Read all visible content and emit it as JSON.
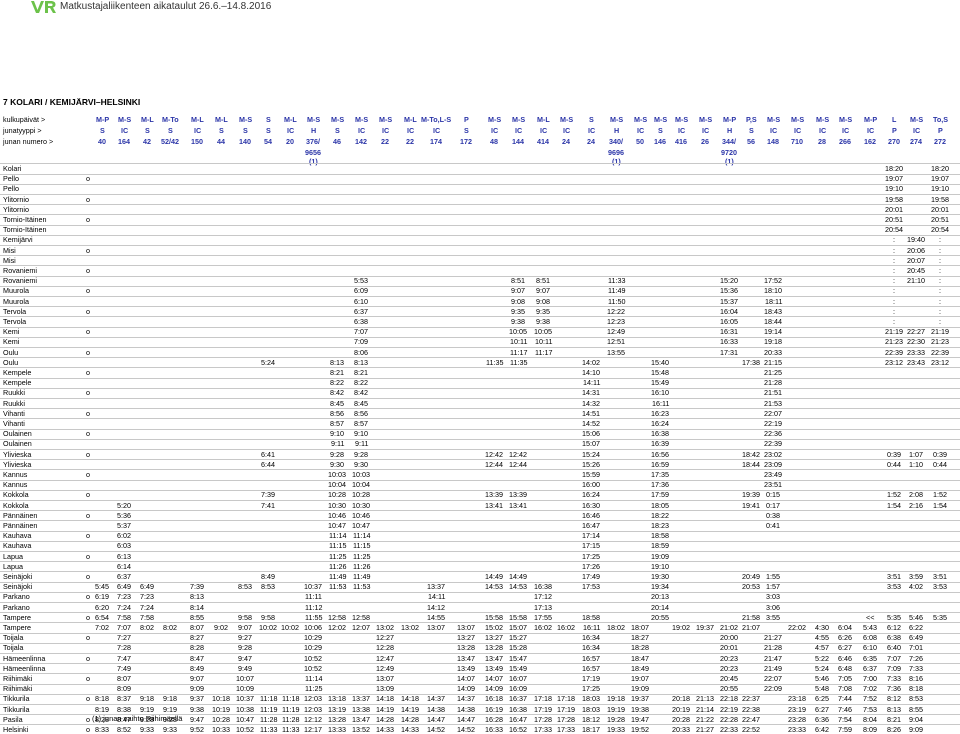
{
  "header": {
    "logo_text": "VR",
    "title": "Matkustajaliikenteen aikataulut 26.6.–14.8.2016"
  },
  "section_title": "7 KOLARI / KEMIJÄRVI–HELSINKI",
  "header_rows": [
    {
      "label": "kulkupäivät >",
      "cells": [
        "M-P",
        "M-S",
        "M-L",
        "M-To",
        "M-L",
        "M-L",
        "M-S",
        "S",
        "M-L",
        "M-S",
        "M-S",
        "M-S",
        "M-S",
        "M-L",
        "M-To,L-S",
        "P",
        "M-S",
        "M-S",
        "M-L",
        "M-S",
        "S",
        "M-S",
        "M-S",
        "M-S",
        "M-S",
        "M-S",
        "M-P",
        "P,S",
        "M-S",
        "M-S",
        "M-S",
        "M-S",
        "M-P",
        "L",
        "M-S",
        "To,S"
      ]
    },
    {
      "label": "junatyyppi >",
      "cells": [
        "S",
        "IC",
        "S",
        "S",
        "IC",
        "S",
        "S",
        "S",
        "IC",
        "H",
        "S",
        "IC",
        "IC",
        "IC",
        "IC",
        "S",
        "IC",
        "IC",
        "IC",
        "IC",
        "IC",
        "H",
        "IC",
        "S",
        "IC",
        "IC",
        "H",
        "S",
        "IC",
        "IC",
        "IC",
        "IC",
        "IC",
        "P",
        "IC",
        "P"
      ]
    },
    {
      "label": "junan numero >",
      "cells": [
        "40",
        "164",
        "42",
        "52/42",
        "150",
        "44",
        "140",
        "54",
        "20",
        "376/",
        "46",
        "142",
        "22",
        "22",
        "174",
        "172",
        "48",
        "144",
        "414",
        "24",
        "24",
        "340/",
        "50",
        "146",
        "416",
        "26",
        "344/",
        "56",
        "148",
        "710",
        "28",
        "266",
        "162",
        "270",
        "274",
        "272"
      ]
    },
    {
      "label": "",
      "cells": [
        "",
        "",
        "",
        "",
        "",
        "",
        "",
        "",
        "",
        "9656",
        "",
        "",
        "",
        "",
        "",
        "",
        "",
        "",
        "",
        "",
        "",
        "9696",
        "",
        "",
        "",
        "",
        "9720",
        "",
        "",
        "",
        "",
        "",
        "",
        "",
        "",
        ""
      ]
    },
    {
      "label": "",
      "cells": [
        "",
        "",
        "",
        "",
        "",
        "",
        "",
        "",
        "",
        "(1)",
        "",
        "",
        "",
        "",
        "",
        "",
        "",
        "",
        "",
        "",
        "",
        "(1)",
        "",
        "",
        "",
        "",
        "(1)",
        "",
        "",
        "",
        "",
        "",
        "",
        "",
        "",
        ""
      ]
    }
  ],
  "rows": [
    {
      "s": "Kolari",
      "o": "",
      "c": {
        "33": "18:20",
        "35": "18:20"
      }
    },
    {
      "s": "Pello",
      "o": "o",
      "c": {
        "33": "19:07",
        "35": "19:07"
      }
    },
    {
      "s": "Pello",
      "o": "",
      "c": {
        "33": "19:10",
        "35": "19:10"
      }
    },
    {
      "s": "Ylitornio",
      "o": "o",
      "c": {
        "33": "19:58",
        "35": "19:58"
      }
    },
    {
      "s": "Ylitornio",
      "o": "",
      "c": {
        "33": "20:01",
        "35": "20:01"
      }
    },
    {
      "s": "Tornio-Itäinen",
      "o": "o",
      "c": {
        "33": "20:51",
        "35": "20:51"
      }
    },
    {
      "s": "Tornio-Itäinen",
      "o": "",
      "c": {
        "33": "20:54",
        "35": "20:54"
      }
    },
    {
      "s": "Kemijärvi",
      "o": "",
      "c": {
        "33": ":",
        "34": "19:40",
        "35": ":"
      }
    },
    {
      "s": "Misi",
      "o": "o",
      "c": {
        "33": ":",
        "34": "20:06",
        "35": ":"
      }
    },
    {
      "s": "Misi",
      "o": "",
      "c": {
        "33": ":",
        "34": "20:07",
        "35": ":"
      }
    },
    {
      "s": "Rovaniemi",
      "o": "o",
      "c": {
        "33": ":",
        "34": "20:45",
        "35": ":"
      }
    },
    {
      "s": "Rovaniemi",
      "o": "",
      "c": {
        "11": "5:53",
        "17": "8:51",
        "18": "8:51",
        "21": "11:33",
        "26": "15:20",
        "28": "17:52",
        "33": ":",
        "34": "21:10",
        "35": ":"
      }
    },
    {
      "s": "Muurola",
      "o": "o",
      "c": {
        "11": "6:09",
        "17": "9:07",
        "18": "9:07",
        "21": "11:49",
        "26": "15:36",
        "28": "18:10",
        "33": ":",
        "35": ":"
      }
    },
    {
      "s": "Muurola",
      "o": "",
      "c": {
        "11": "6:10",
        "17": "9:08",
        "18": "9:08",
        "21": "11:50",
        "26": "15:37",
        "28": "18:11",
        "33": ":",
        "35": ":"
      }
    },
    {
      "s": "Tervola",
      "o": "o",
      "c": {
        "11": "6:37",
        "17": "9:35",
        "18": "9:35",
        "21": "12:22",
        "26": "16:04",
        "28": "18:43",
        "33": ":",
        "35": ":"
      }
    },
    {
      "s": "Tervola",
      "o": "",
      "c": {
        "11": "6:38",
        "17": "9:38",
        "18": "9:38",
        "21": "12:23",
        "26": "16:05",
        "28": "18:44",
        "33": ":",
        "35": ":"
      }
    },
    {
      "s": "Kemi",
      "o": "o",
      "c": {
        "11": "7:07",
        "17": "10:05",
        "18": "10:05",
        "21": "12:49",
        "26": "16:31",
        "28": "19:14",
        "33": "21:19",
        "34": "22:27",
        "35": "21:19"
      }
    },
    {
      "s": "Kemi",
      "o": "",
      "c": {
        "11": "7:09",
        "17": "10:11",
        "18": "10:11",
        "21": "12:51",
        "26": "16:33",
        "28": "19:18",
        "33": "21:23",
        "34": "22:30",
        "35": "21:23"
      }
    },
    {
      "s": "Oulu",
      "o": "o",
      "c": {
        "11": "8:06",
        "17": "11:17",
        "18": "11:17",
        "21": "13:55",
        "26": "17:31",
        "28": "20:33",
        "33": "22:39",
        "34": "23:33",
        "35": "22:39"
      }
    },
    {
      "s": "Oulu",
      "o": "",
      "c": {
        "7": "5:24",
        "10": "8:13",
        "11": "8:13",
        "16": "11:35",
        "17": "11:35",
        "20": "14:02",
        "23": "15:40",
        "27": "17:38",
        "28": "21:15",
        "33": "23:12",
        "34": "23:43",
        "35": "23:12"
      }
    },
    {
      "s": "Kempele",
      "o": "o",
      "c": {
        "10": "8:21",
        "11": "8:21",
        "20": "14:10",
        "23": "15:48",
        "28": "21:25"
      }
    },
    {
      "s": "Kempele",
      "o": "",
      "c": {
        "10": "8:22",
        "11": "8:22",
        "20": "14:11",
        "23": "15:49",
        "28": "21:28"
      }
    },
    {
      "s": "Ruukki",
      "o": "o",
      "c": {
        "10": "8:42",
        "11": "8:42",
        "20": "14:31",
        "23": "16:10",
        "28": "21:51"
      }
    },
    {
      "s": "Ruukki",
      "o": "",
      "c": {
        "10": "8:45",
        "11": "8:45",
        "20": "14:32",
        "23": "16:11",
        "28": "21:53"
      }
    },
    {
      "s": "Vihanti",
      "o": "o",
      "c": {
        "10": "8:56",
        "11": "8:56",
        "20": "14:51",
        "23": "16:23",
        "28": "22:07"
      }
    },
    {
      "s": "Vihanti",
      "o": "",
      "c": {
        "10": "8:57",
        "11": "8:57",
        "20": "14:52",
        "23": "16:24",
        "28": "22:19"
      }
    },
    {
      "s": "Oulainen",
      "o": "o",
      "c": {
        "10": "9:10",
        "11": "9:10",
        "20": "15:06",
        "23": "16:38",
        "28": "22:36"
      }
    },
    {
      "s": "Oulainen",
      "o": "",
      "c": {
        "10": "9:11",
        "11": "9:11",
        "20": "15:07",
        "23": "16:39",
        "28": "22:39"
      }
    },
    {
      "s": "Ylivieska",
      "o": "o",
      "c": {
        "7": "6:41",
        "10": "9:28",
        "11": "9:28",
        "16": "12:42",
        "17": "12:42",
        "20": "15:24",
        "23": "16:56",
        "27": "18:42",
        "28": "23:02",
        "33": "0:39",
        "34": "1:07",
        "35": "0:39"
      }
    },
    {
      "s": "Ylivieska",
      "o": "",
      "c": {
        "7": "6:44",
        "10": "9:30",
        "11": "9:30",
        "16": "12:44",
        "17": "12:44",
        "20": "15:26",
        "23": "16:59",
        "27": "18:44",
        "28": "23:09",
        "33": "0:44",
        "34": "1:10",
        "35": "0:44"
      }
    },
    {
      "s": "Kannus",
      "o": "o",
      "c": {
        "10": "10:03",
        "11": "10:03",
        "20": "15:59",
        "23": "17:35",
        "28": "23:49"
      }
    },
    {
      "s": "Kannus",
      "o": "",
      "c": {
        "10": "10:04",
        "11": "10:04",
        "20": "16:00",
        "23": "17:36",
        "28": "23:51"
      }
    },
    {
      "s": "Kokkola",
      "o": "o",
      "c": {
        "7": "7:39",
        "10": "10:28",
        "11": "10:28",
        "16": "13:39",
        "17": "13:39",
        "20": "16:24",
        "23": "17:59",
        "27": "19:39",
        "28": "0:15",
        "33": "1:52",
        "34": "2:08",
        "35": "1:52"
      }
    },
    {
      "s": "Kokkola",
      "o": "",
      "c": {
        "1": "5:20",
        "7": "7:41",
        "10": "10:30",
        "11": "10:30",
        "16": "13:41",
        "17": "13:41",
        "20": "16:30",
        "23": "18:05",
        "27": "19:41",
        "28": "0:17",
        "33": "1:54",
        "34": "2:16",
        "35": "1:54"
      }
    },
    {
      "s": "Pännäinen",
      "o": "o",
      "c": {
        "1": "5:36",
        "10": "10:46",
        "11": "10:46",
        "20": "16:46",
        "23": "18:22",
        "28": "0:38"
      }
    },
    {
      "s": "Pännäinen",
      "o": "",
      "c": {
        "1": "5:37",
        "10": "10:47",
        "11": "10:47",
        "20": "16:47",
        "23": "18:23",
        "28": "0:41"
      }
    },
    {
      "s": "Kauhava",
      "o": "o",
      "c": {
        "1": "6:02",
        "10": "11:14",
        "11": "11:14",
        "20": "17:14",
        "23": "18:58"
      }
    },
    {
      "s": "Kauhava",
      "o": "",
      "c": {
        "1": "6:03",
        "10": "11:15",
        "11": "11:15",
        "20": "17:15",
        "23": "18:59"
      }
    },
    {
      "s": "Lapua",
      "o": "o",
      "c": {
        "1": "6:13",
        "10": "11:25",
        "11": "11:25",
        "20": "17:25",
        "23": "19:09"
      }
    },
    {
      "s": "Lapua",
      "o": "",
      "c": {
        "1": "6:14",
        "10": "11:26",
        "11": "11:26",
        "20": "17:26",
        "23": "19:10"
      }
    },
    {
      "s": "Seinäjoki",
      "o": "o",
      "c": {
        "1": "6:37",
        "7": "8:49",
        "10": "11:49",
        "11": "11:49",
        "16": "14:49",
        "17": "14:49",
        "20": "17:49",
        "23": "19:30",
        "27": "20:49",
        "28": "1:55",
        "33": "3:51",
        "34": "3:59",
        "35": "3:51"
      }
    },
    {
      "s": "Seinäjoki",
      "o": "",
      "c": {
        "0": "5:45",
        "1": "6:49",
        "2": "6:49",
        "4": "7:39",
        "6": "8:53",
        "7": "8:53",
        "9": "10:37",
        "10": "11:53",
        "11": "11:53",
        "14": "13:37",
        "16": "14:53",
        "17": "14:53",
        "18": "16:38",
        "20": "17:53",
        "23": "19:34",
        "27": "20:53",
        "28": "1:57",
        "33": "3:53",
        "34": "4:02",
        "35": "3:53"
      }
    },
    {
      "s": "Parkano",
      "o": "o",
      "c": {
        "0": "6:19",
        "1": "7:23",
        "2": "7:23",
        "4": "8:13",
        "9": "11:11",
        "14": "14:11",
        "18": "17:12",
        "23": "20:13",
        "28": "3:03"
      }
    },
    {
      "s": "Parkano",
      "o": "",
      "c": {
        "0": "6:20",
        "1": "7:24",
        "2": "7:24",
        "4": "8:14",
        "9": "11:12",
        "14": "14:12",
        "18": "17:13",
        "23": "20:14",
        "28": "3:06"
      }
    },
    {
      "s": "Tampere",
      "o": "o",
      "c": {
        "0": "6:54",
        "1": "7:58",
        "2": "7:58",
        "4": "8:55",
        "6": "9:58",
        "7": "9:58",
        "9": "11:55",
        "10": "12:58",
        "11": "12:58",
        "14": "14:55",
        "16": "15:58",
        "17": "15:58",
        "18": "17:55",
        "20": "18:58",
        "23": "20:55",
        "27": "21:58",
        "28": "3:55",
        "32": "<<",
        "33": "5:35",
        "34": "5:46",
        "35": "5:35"
      }
    },
    {
      "s": "Tampere",
      "o": "",
      "c": {
        "0": "7:02",
        "1": "7:07",
        "2": "8:02",
        "3": "8:02",
        "4": "8:07",
        "5": "9:02",
        "6": "9:07",
        "7": "10:02",
        "8": "10:02",
        "9": "10:06",
        "10": "12:02",
        "11": "12:07",
        "12": "13:02",
        "13": "13:02",
        "14": "13:07",
        "15": "13:07",
        "16": "15:02",
        "17": "15:07",
        "18": "16:02",
        "19": "16:02",
        "20": "16:11",
        "21": "18:02",
        "22": "18:07",
        "24": "19:02",
        "25": "19:37",
        "26": "21:02",
        "27": "21:07",
        "29": "22:02",
        "30": "4:30",
        "31": "6:04",
        "32": "5:43",
        "33": "6:12",
        "34": "6:22"
      }
    },
    {
      "s": "Toijala",
      "o": "o",
      "c": {
        "1": "7:27",
        "4": "8:27",
        "6": "9:27",
        "9": "10:29",
        "12": "12:27",
        "15": "13:27",
        "16": "13:27",
        "17": "15:27",
        "20": "16:34",
        "22": "18:27",
        "26": "20:00",
        "28": "21:27",
        "30": "4:55",
        "31": "6:26",
        "32": "6:08",
        "33": "6:38",
        "34": "6:49"
      }
    },
    {
      "s": "Toijala",
      "o": "",
      "c": {
        "1": "7:28",
        "4": "8:28",
        "6": "9:28",
        "9": "10:29",
        "12": "12:28",
        "15": "13:28",
        "16": "13:28",
        "17": "15:28",
        "20": "16:34",
        "22": "18:28",
        "26": "20:01",
        "28": "21:28",
        "30": "4:57",
        "31": "6:27",
        "32": "6:10",
        "33": "6:40",
        "34": "7:01"
      }
    },
    {
      "s": "Hämeenlinna",
      "o": "o",
      "c": {
        "1": "7:47",
        "4": "8:47",
        "6": "9:47",
        "9": "10:52",
        "12": "12:47",
        "15": "13:47",
        "16": "13:47",
        "17": "15:47",
        "20": "16:57",
        "22": "18:47",
        "26": "20:23",
        "28": "21:47",
        "30": "5:22",
        "31": "6:46",
        "32": "6:35",
        "33": "7:07",
        "34": "7:26"
      }
    },
    {
      "s": "Hämeenlinna",
      "o": "",
      "c": {
        "1": "7:49",
        "4": "8:49",
        "6": "9:49",
        "9": "10:52",
        "12": "12:49",
        "15": "13:49",
        "16": "13:49",
        "17": "15:49",
        "20": "16:57",
        "22": "18:49",
        "26": "20:23",
        "28": "21:49",
        "30": "5:24",
        "31": "6:48",
        "32": "6:37",
        "33": "7:09",
        "34": "7:33"
      }
    },
    {
      "s": "Riihimäki",
      "o": "o",
      "c": {
        "1": "8:07",
        "4": "9:07",
        "6": "10:07",
        "9": "11:14",
        "12": "13:07",
        "15": "14:07",
        "16": "14:07",
        "17": "16:07",
        "20": "17:19",
        "22": "19:07",
        "26": "20:45",
        "28": "22:07",
        "30": "5:46",
        "31": "7:05",
        "32": "7:00",
        "33": "7:33",
        "34": "8:16"
      }
    },
    {
      "s": "Riihimäki",
      "o": "",
      "c": {
        "1": "8:09",
        "4": "9:09",
        "6": "10:09",
        "9": "11:25",
        "12": "13:09",
        "15": "14:09",
        "16": "14:09",
        "17": "16:09",
        "20": "17:25",
        "22": "19:09",
        "26": "20:55",
        "28": "22:09",
        "30": "5:48",
        "31": "7:08",
        "32": "7:02",
        "33": "7:36",
        "34": "8:18"
      }
    },
    {
      "s": "Tikkurila",
      "o": "o",
      "c": {
        "0": "8:18",
        "1": "8:37",
        "2": "9:18",
        "3": "9:18",
        "4": "9:37",
        "5": "10:18",
        "6": "10:37",
        "7": "11:18",
        "8": "11:18",
        "9": "12:03",
        "10": "13:18",
        "11": "13:37",
        "12": "14:18",
        "13": "14:18",
        "14": "14:37",
        "15": "14:37",
        "16": "16:18",
        "17": "16:37",
        "18": "17:18",
        "19": "17:18",
        "20": "18:03",
        "21": "19:18",
        "22": "19:37",
        "24": "20:18",
        "25": "21:13",
        "26": "22:18",
        "27": "22:37",
        "29": "23:18",
        "30": "6:25",
        "31": "7:44",
        "32": "7:52",
        "33": "8:12",
        "34": "8:53"
      }
    },
    {
      "s": "Tikkurila",
      "o": "",
      "c": {
        "0": "8:19",
        "1": "8:38",
        "2": "9:19",
        "3": "9:19",
        "4": "9:38",
        "5": "10:19",
        "6": "10:38",
        "7": "11:19",
        "8": "11:19",
        "9": "12:03",
        "10": "13:19",
        "11": "13:38",
        "12": "14:19",
        "13": "14:19",
        "14": "14:38",
        "15": "14:38",
        "16": "16:19",
        "17": "16:38",
        "18": "17:19",
        "19": "17:19",
        "20": "18:03",
        "21": "19:19",
        "22": "19:38",
        "24": "20:19",
        "25": "21:14",
        "26": "22:19",
        "27": "22:38",
        "29": "23:19",
        "30": "6:27",
        "31": "7:46",
        "32": "7:53",
        "33": "8:13",
        "34": "8:55"
      }
    },
    {
      "s": "Pasila",
      "o": "o",
      "c": {
        "0": "8:28",
        "1": "8:47",
        "2": "9:28",
        "3": "9:28",
        "4": "9:47",
        "5": "10:28",
        "6": "10:47",
        "7": "11:28",
        "8": "11:28",
        "9": "12:12",
        "10": "13:28",
        "11": "13:47",
        "12": "14:28",
        "13": "14:28",
        "14": "14:47",
        "15": "14:47",
        "16": "16:28",
        "17": "16:47",
        "18": "17:28",
        "19": "17:28",
        "20": "18:12",
        "21": "19:28",
        "22": "19:47",
        "24": "20:28",
        "25": "21:22",
        "26": "22:28",
        "27": "22:47",
        "29": "23:28",
        "30": "6:36",
        "31": "7:54",
        "32": "8:04",
        "33": "8:21",
        "34": "9:04"
      }
    },
    {
      "s": "Helsinki",
      "o": "o",
      "c": {
        "0": "8:33",
        "1": "8:52",
        "2": "9:33",
        "3": "9:33",
        "4": "9:52",
        "5": "10:33",
        "6": "10:52",
        "7": "11:33",
        "8": "11:33",
        "9": "12:17",
        "10": "13:33",
        "11": "13:52",
        "12": "14:33",
        "13": "14:33",
        "14": "14:52",
        "15": "14:52",
        "16": "16:33",
        "17": "16:52",
        "18": "17:33",
        "19": "17:33",
        "20": "18:17",
        "21": "19:33",
        "22": "19:52",
        "24": "20:33",
        "25": "21:27",
        "26": "22:33",
        "27": "22:52",
        "29": "23:33",
        "30": "6:42",
        "31": "7:59",
        "32": "8:09",
        "33": "8:26",
        "34": "9:09"
      }
    }
  ],
  "footnote": "(1) junan vaihto Riihimäellä",
  "colors": {
    "brand": "#2b35a8",
    "logo": "#6cc24a"
  }
}
